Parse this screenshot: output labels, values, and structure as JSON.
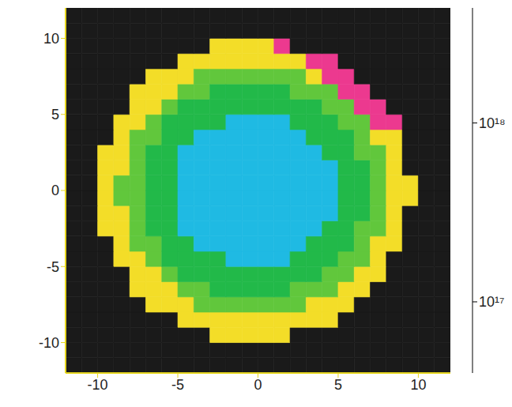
{
  "chart_data": {
    "type": "heatmap",
    "x": [
      -11.5,
      -10.5,
      -9.5,
      -8.5,
      -7.5,
      -6.5,
      -5.5,
      -4.5,
      -3.5,
      -2.5,
      -1.5,
      -0.5,
      0.5,
      1.5,
      2.5,
      3.5,
      4.5,
      5.5,
      6.5,
      7.5,
      8.5,
      9.5,
      10.5,
      11.5
    ],
    "y": [
      -11.5,
      -10.5,
      -9.5,
      -8.5,
      -7.5,
      -6.5,
      -5.5,
      -4.5,
      -3.5,
      -2.5,
      -1.5,
      -0.5,
      0.5,
      1.5,
      2.5,
      3.5,
      4.5,
      5.5,
      6.5,
      7.5,
      8.5,
      9.5,
      10.5,
      11.5
    ],
    "values": [
      [
        4e+16,
        4e+16,
        4e+16,
        4e+16,
        4e+16,
        4e+16,
        4e+16,
        4e+16,
        4e+16,
        4e+16,
        4e+16,
        4e+16,
        4e+16,
        4e+16,
        4e+16,
        4e+16,
        4e+16,
        4e+16,
        4e+16,
        4e+16,
        4e+16,
        4e+16,
        4e+16,
        4e+16
      ],
      [
        4e+16,
        4e+16,
        4e+16,
        4e+16,
        4e+16,
        4e+16,
        4e+16,
        4e+16,
        4e+16,
        4e+16,
        4e+16,
        4e+16,
        4e+16,
        4e+16,
        4e+16,
        4e+16,
        4e+16,
        4e+16,
        4e+16,
        4e+16,
        4e+16,
        4e+16,
        4e+16,
        4e+16
      ],
      [
        4e+16,
        4e+16,
        4e+16,
        4e+16,
        4e+16,
        4e+16,
        4e+16,
        4e+16,
        4e+16,
        4.5e+17,
        4.5e+17,
        4.5e+17,
        4.5e+17,
        4.5e+17,
        4e+16,
        4e+16,
        4e+16,
        4e+16,
        4e+16,
        4e+16,
        4e+16,
        4e+16,
        4e+16,
        4e+16
      ],
      [
        4e+16,
        4e+16,
        4e+16,
        4e+16,
        4e+16,
        4e+16,
        4e+16,
        4.5e+17,
        4.5e+17,
        4.5e+17,
        4.5e+17,
        4.5e+17,
        4.5e+17,
        4.5e+17,
        4.5e+17,
        4.5e+17,
        4.5e+17,
        4e+16,
        4e+16,
        4e+16,
        4e+16,
        4e+16,
        4e+16,
        4e+16
      ],
      [
        4e+16,
        4e+16,
        4e+16,
        4e+16,
        4e+16,
        4.5e+17,
        4.5e+17,
        4.5e+17,
        3e+17,
        3e+17,
        3e+17,
        3e+17,
        3e+17,
        3e+17,
        3e+17,
        4.5e+17,
        4.5e+17,
        4.5e+17,
        4e+16,
        4e+16,
        4e+16,
        4e+16,
        4e+16,
        4e+16
      ],
      [
        4e+16,
        4e+16,
        4e+16,
        4e+16,
        4.5e+17,
        4.5e+17,
        4.5e+17,
        3e+17,
        3e+17,
        2.2e+17,
        2.2e+17,
        2.2e+17,
        2.2e+17,
        2.2e+17,
        3e+17,
        3e+17,
        3e+17,
        4.5e+17,
        4.5e+17,
        4e+16,
        4e+16,
        4e+16,
        4e+16,
        4e+16
      ],
      [
        4e+16,
        4e+16,
        4e+16,
        4e+16,
        4.5e+17,
        4.5e+17,
        3e+17,
        2.2e+17,
        2.2e+17,
        2.2e+17,
        2.2e+17,
        2.2e+17,
        2.2e+17,
        2.2e+17,
        2.2e+17,
        2.2e+17,
        3e+17,
        3e+17,
        4.5e+17,
        4.5e+17,
        4e+16,
        4e+16,
        4e+16,
        4e+16
      ],
      [
        4e+16,
        4e+16,
        4e+16,
        4.5e+17,
        4.5e+17,
        3e+17,
        2.2e+17,
        2.2e+17,
        2.2e+17,
        2.2e+17,
        1.3e+17,
        1.3e+17,
        1.3e+17,
        1.3e+17,
        2.2e+17,
        2.2e+17,
        2.2e+17,
        3e+17,
        3e+17,
        4.5e+17,
        4e+16,
        4e+16,
        4e+16,
        4e+16
      ],
      [
        4e+16,
        4e+16,
        4e+16,
        4.5e+17,
        3e+17,
        3e+17,
        2.2e+17,
        2.2e+17,
        1.3e+17,
        1.3e+17,
        1.3e+17,
        1.3e+17,
        1.3e+17,
        1.3e+17,
        1.3e+17,
        2.2e+17,
        2.2e+17,
        2.2e+17,
        3e+17,
        4.5e+17,
        4.5e+17,
        4e+16,
        4e+16,
        4e+16
      ],
      [
        4e+16,
        4e+16,
        4.5e+17,
        4.5e+17,
        3e+17,
        2.2e+17,
        2.2e+17,
        1.3e+17,
        1.3e+17,
        1.3e+17,
        1.3e+17,
        1.3e+17,
        1.3e+17,
        1.3e+17,
        1.3e+17,
        1.3e+17,
        2.2e+17,
        2.2e+17,
        3e+17,
        3e+17,
        4.5e+17,
        4e+16,
        4e+16,
        4e+16
      ],
      [
        4e+16,
        4e+16,
        4.5e+17,
        4.5e+17,
        3e+17,
        2.2e+17,
        2.2e+17,
        1.3e+17,
        1.3e+17,
        1.3e+17,
        1.3e+17,
        1.3e+17,
        1.3e+17,
        1.3e+17,
        1.3e+17,
        1.3e+17,
        1.3e+17,
        2.2e+17,
        2.2e+17,
        3e+17,
        4.5e+17,
        4e+16,
        4e+16,
        4e+16
      ],
      [
        4e+16,
        4e+16,
        4.5e+17,
        3e+17,
        3e+17,
        2.2e+17,
        2.2e+17,
        1.3e+17,
        1.3e+17,
        1.3e+17,
        1.3e+17,
        1.3e+17,
        1.3e+17,
        1.3e+17,
        1.3e+17,
        1.3e+17,
        1.3e+17,
        2.2e+17,
        2.2e+17,
        3e+17,
        4.5e+17,
        4.5e+17,
        4e+16,
        4e+16
      ],
      [
        4e+16,
        4e+16,
        4.5e+17,
        3e+17,
        3e+17,
        2.2e+17,
        2.2e+17,
        1.3e+17,
        1.3e+17,
        1.3e+17,
        1.3e+17,
        1.3e+17,
        1.3e+17,
        1.3e+17,
        1.3e+17,
        1.3e+17,
        1.3e+17,
        2.2e+17,
        2.2e+17,
        3e+17,
        4.5e+17,
        4.5e+17,
        4e+16,
        4e+16
      ],
      [
        4e+16,
        4e+16,
        4.5e+17,
        4.5e+17,
        3e+17,
        2.2e+17,
        2.2e+17,
        1.3e+17,
        1.3e+17,
        1.3e+17,
        1.3e+17,
        1.3e+17,
        1.3e+17,
        1.3e+17,
        1.3e+17,
        1.3e+17,
        1.3e+17,
        2.2e+17,
        2.2e+17,
        3e+17,
        4.5e+17,
        4e+16,
        4e+16,
        4e+16
      ],
      [
        4e+16,
        4e+16,
        4.5e+17,
        4.5e+17,
        3e+17,
        2.2e+17,
        2.2e+17,
        1.3e+17,
        1.3e+17,
        1.3e+17,
        1.3e+17,
        1.3e+17,
        1.3e+17,
        1.3e+17,
        1.3e+17,
        1.3e+17,
        2.2e+17,
        2.2e+17,
        3e+17,
        3e+17,
        4.5e+17,
        4e+16,
        4e+16,
        4e+16
      ],
      [
        4e+16,
        4e+16,
        4e+16,
        4.5e+17,
        3e+17,
        3e+17,
        2.2e+17,
        2.2e+17,
        1.3e+17,
        1.3e+17,
        1.3e+17,
        1.3e+17,
        1.3e+17,
        1.3e+17,
        1.3e+17,
        2.2e+17,
        2.2e+17,
        2.2e+17,
        3e+17,
        4.5e+17,
        4.5e+17,
        4e+16,
        4e+16,
        4e+16
      ],
      [
        4e+16,
        4e+16,
        4e+16,
        4.5e+17,
        4.5e+17,
        3e+17,
        2.2e+17,
        2.2e+17,
        2.2e+17,
        2.2e+17,
        1.3e+17,
        1.3e+17,
        1.3e+17,
        1.3e+17,
        2.2e+17,
        2.2e+17,
        2.2e+17,
        3e+17,
        3e+17,
        1.6e+18,
        1.6e+18,
        4e+16,
        4e+16,
        4e+16
      ],
      [
        4e+16,
        4e+16,
        4e+16,
        4e+16,
        4.5e+17,
        4.5e+17,
        3e+17,
        2.2e+17,
        2.2e+17,
        2.2e+17,
        2.2e+17,
        2.2e+17,
        2.2e+17,
        2.2e+17,
        2.2e+17,
        2.2e+17,
        3e+17,
        3e+17,
        1.6e+18,
        1.6e+18,
        4e+16,
        4e+16,
        4e+16,
        4e+16
      ],
      [
        4e+16,
        4e+16,
        4e+16,
        4e+16,
        4.5e+17,
        4.5e+17,
        4.5e+17,
        3e+17,
        3e+17,
        2.2e+17,
        2.2e+17,
        2.2e+17,
        2.2e+17,
        2.2e+17,
        3e+17,
        3e+17,
        3e+17,
        1.6e+18,
        1.6e+18,
        4e+16,
        4e+16,
        4e+16,
        4e+16,
        4e+16
      ],
      [
        4e+16,
        4e+16,
        4e+16,
        4e+16,
        4e+16,
        4.5e+17,
        4.5e+17,
        4.5e+17,
        3e+17,
        3e+17,
        3e+17,
        3e+17,
        3e+17,
        3e+17,
        3e+17,
        4.5e+17,
        1.6e+18,
        1.6e+18,
        4e+16,
        4e+16,
        4e+16,
        4e+16,
        4e+16,
        4e+16
      ],
      [
        4e+16,
        4e+16,
        4e+16,
        4e+16,
        4e+16,
        4e+16,
        4e+16,
        4.5e+17,
        4.5e+17,
        4.5e+17,
        4.5e+17,
        4.5e+17,
        4.5e+17,
        4.5e+17,
        4.5e+17,
        1.6e+18,
        1.6e+18,
        4e+16,
        4e+16,
        4e+16,
        4e+16,
        4e+16,
        4e+16,
        4e+16
      ],
      [
        4e+16,
        4e+16,
        4e+16,
        4e+16,
        4e+16,
        4e+16,
        4e+16,
        4e+16,
        4e+16,
        4.5e+17,
        4.5e+17,
        4.5e+17,
        4.5e+17,
        1.6e+18,
        4e+16,
        4e+16,
        4e+16,
        4e+16,
        4e+16,
        4e+16,
        4e+16,
        4e+16,
        4e+16,
        4e+16
      ],
      [
        4e+16,
        4e+16,
        4e+16,
        4e+16,
        4e+16,
        4e+16,
        4e+16,
        4e+16,
        4e+16,
        4e+16,
        4e+16,
        4e+16,
        4e+16,
        4e+16,
        4e+16,
        4e+16,
        4e+16,
        4e+16,
        4e+16,
        4e+16,
        4e+16,
        4e+16,
        4e+16,
        4e+16
      ],
      [
        4e+16,
        4e+16,
        4e+16,
        4e+16,
        4e+16,
        4e+16,
        4e+16,
        4e+16,
        4e+16,
        4e+16,
        4e+16,
        4e+16,
        4e+16,
        4e+16,
        4e+16,
        4e+16,
        4e+16,
        4e+16,
        4e+16,
        4e+16,
        4e+16,
        4e+16,
        4e+16,
        4e+16
      ]
    ],
    "xlim": [
      -12,
      12
    ],
    "ylim": [
      -12,
      12
    ],
    "xticks": [
      -10,
      -5,
      0,
      5,
      10
    ],
    "yticks": [
      -10,
      -5,
      0,
      5,
      10
    ],
    "colorbar": {
      "log": true,
      "range": [
        4e+16,
        4.4e+18
      ],
      "ticks": [
        {
          "value": 1e+17,
          "label": "10¹⁷"
        },
        {
          "value": 1e+18,
          "label": "10¹⁸"
        }
      ]
    }
  }
}
